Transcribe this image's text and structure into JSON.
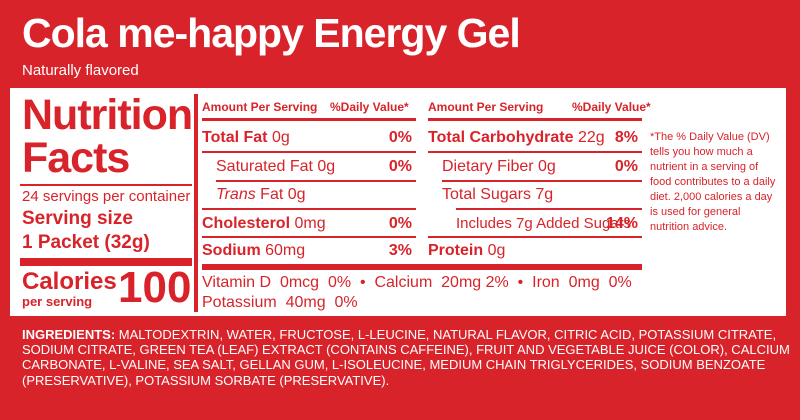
{
  "product": {
    "title": "Cola me-happy Energy Gel",
    "subtitle": "Naturally flavored"
  },
  "nutrition": {
    "heading_line1": "Nutrition",
    "heading_line2": "Facts",
    "servings_per_container": "24 servings per container",
    "serving_size_label": "Serving size",
    "serving_size_value": "1 Packet (32g)",
    "calories_label": "Calories",
    "calories_sublabel": "per serving",
    "calories_value": "100",
    "header_amount": "Amount Per Serving",
    "header_dv": "%Daily Value*",
    "left_rows": [
      {
        "name": "Total Fat",
        "amount": "0g",
        "dv": "0%"
      },
      {
        "name": "Saturated Fat",
        "amount": "0g",
        "dv": "0%"
      },
      {
        "name_italic": "Trans",
        "name": "Fat",
        "amount": "0g",
        "dv": ""
      },
      {
        "name": "Cholesterol",
        "amount": "0mg",
        "dv": "0%"
      },
      {
        "name": "Sodium",
        "amount": "60mg",
        "dv": "3%"
      }
    ],
    "right_rows": [
      {
        "name": "Total Carbohydrate",
        "amount": "22g",
        "dv": "8%"
      },
      {
        "name": "Dietary Fiber",
        "amount": "0g",
        "dv": "0%"
      },
      {
        "name": "Total Sugars",
        "amount": "7g",
        "dv": ""
      },
      {
        "prefix": "Includes",
        "amount": "7g",
        "name": "Added Sugars",
        "dv": "14%"
      },
      {
        "name": "Protein",
        "amount": "0g",
        "dv": ""
      }
    ],
    "vitamins_line1": "Vitamin D  0mcg  0%  •  Calcium  20mg 2%  •  Iron  0mg  0%",
    "vitamins_line2": "Potassium  40mg  0%",
    "footnote": "*The % Daily Value (DV) tells you how much a nutrient in a serving of food contributes to a daily diet. 2,000 calories a day is used for general nutrition advice."
  },
  "ingredients": {
    "label": "INGREDIENTS:",
    "text": "MALTODEXTRIN, WATER, FRUCTOSE, L-LEUCINE, NATURAL FLAVOR, CITRIC ACID, POTASSIUM CITRATE, SODIUM CITRATE, GREEN TEA (LEAF) EXTRACT (CONTAINS CAFFEINE), FRUIT AND VEGETABLE JUICE (COLOR), CALCIUM CARBONATE, L-VALINE, SEA SALT, GELLAN GUM, L-ISOLEUCINE, MEDIUM CHAIN TRIGLYCERIDES, SODIUM BENZOATE (PRESERVATIVE), POTASSIUM SORBATE (PRESERVATIVE)."
  },
  "colors": {
    "brand_red": "#d8232a",
    "label_white": "#ffffff"
  }
}
